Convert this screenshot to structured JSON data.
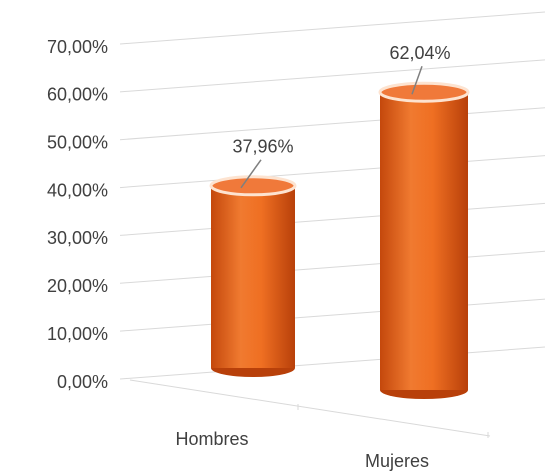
{
  "chart_data": {
    "type": "bar",
    "categories": [
      "Hombres",
      "Mujeres"
    ],
    "values": [
      37.96,
      62.04
    ],
    "value_labels": [
      "37,96%",
      "62,04%"
    ],
    "color": "#e8641c",
    "ylim": [
      0,
      70
    ],
    "yticks": [
      {
        "value": 0,
        "label": "0,00%"
      },
      {
        "value": 10,
        "label": "10,00%"
      },
      {
        "value": 20,
        "label": "20,00%"
      },
      {
        "value": 30,
        "label": "30,00%"
      },
      {
        "value": 40,
        "label": "40,00%"
      },
      {
        "value": 50,
        "label": "50,00%"
      },
      {
        "value": 60,
        "label": "60,00%"
      },
      {
        "value": 70,
        "label": "70,00%"
      }
    ],
    "grid": true
  }
}
